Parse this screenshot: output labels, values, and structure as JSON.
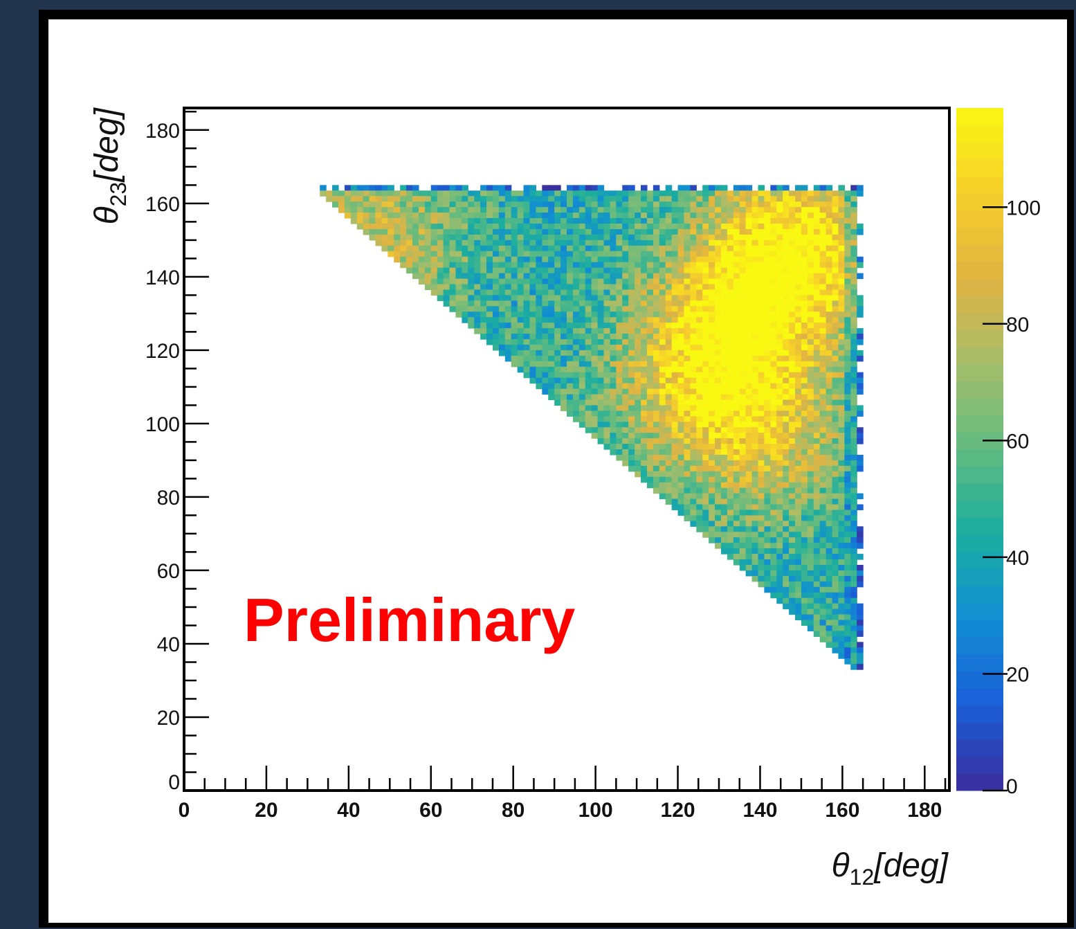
{
  "chart_data": {
    "type": "heatmap",
    "xlabel": "θ12[deg]",
    "ylabel": "θ23[deg]",
    "xlabel_main": "θ",
    "xlabel_sub": "12",
    "xlabel_unit": "[deg]",
    "ylabel_main": "θ",
    "ylabel_sub": "23",
    "ylabel_unit": "[deg]",
    "xlim": [
      0,
      186
    ],
    "ylim": [
      0,
      186
    ],
    "xticks": [
      0,
      20,
      40,
      60,
      80,
      100,
      120,
      140,
      160,
      180
    ],
    "yticks": [
      0,
      20,
      40,
      60,
      80,
      100,
      120,
      140,
      160,
      180
    ],
    "colorbar": {
      "min": 0,
      "max": 117,
      "ticks": [
        0,
        20,
        40,
        60,
        80,
        100
      ],
      "colors": [
        "#3a2f9e",
        "#1b5fd8",
        "#118fd1",
        "#1cae9f",
        "#63bb7f",
        "#a7bd6a",
        "#e1b341",
        "#f6d02a",
        "#f9f812"
      ]
    },
    "bin_width_deg": 1.5,
    "region": {
      "x_min": 30,
      "x_max": 165,
      "y_max": 165,
      "lower_edge": "x + y = 195"
    },
    "hotspots": [
      {
        "x": 148,
        "y": 148,
        "value": 110
      },
      {
        "x": 135,
        "y": 128,
        "value": 92
      },
      {
        "x": 125,
        "y": 110,
        "value": 85
      },
      {
        "x": 140,
        "y": 95,
        "value": 80
      },
      {
        "x": 45,
        "y": 150,
        "value": 82
      }
    ],
    "annotation": "Preliminary"
  },
  "colors": {
    "background": "#22344d",
    "annotation": "#ff0000"
  }
}
